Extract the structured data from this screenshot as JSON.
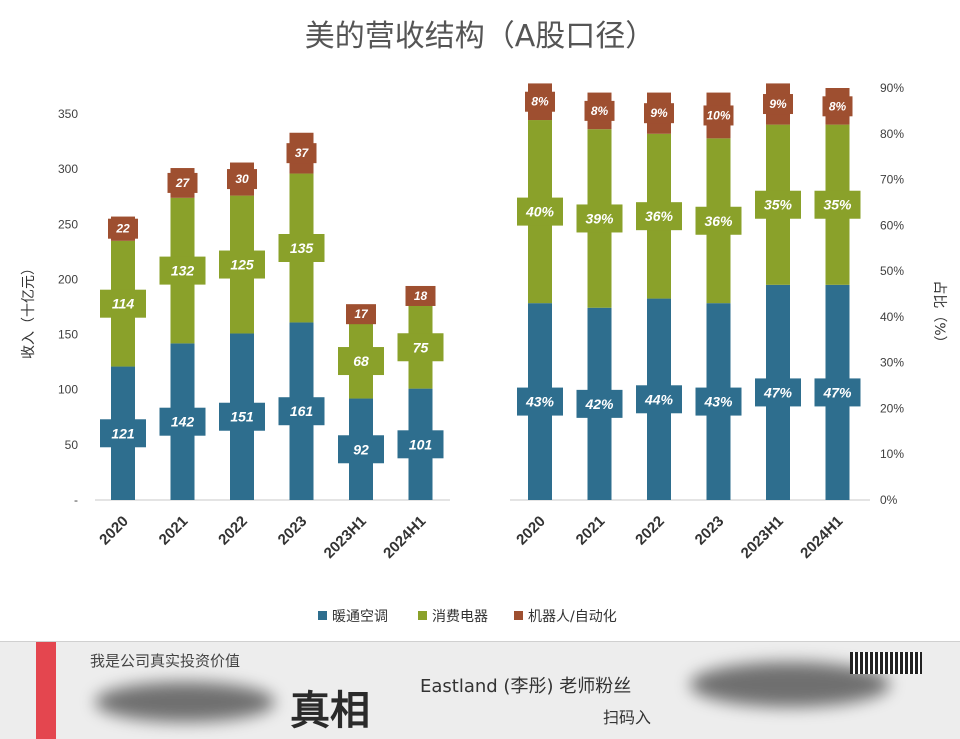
{
  "title": "美的营收结构（A股口径）",
  "colors": {
    "hvac": "#2e6e8e",
    "consumer": "#8aa12a",
    "robot": "#9e4f30"
  },
  "legend": [
    {
      "label": "暖通空调",
      "key": "hvac"
    },
    {
      "label": "消费电器",
      "key": "consumer"
    },
    {
      "label": "机器人/自动化",
      "key": "robot"
    }
  ],
  "chart_data": [
    {
      "type": "bar",
      "stacked": true,
      "ylabel": "收入（十亿元）",
      "ylim": [
        0,
        350
      ],
      "yticks": [
        "-",
        "50",
        "100",
        "150",
        "200",
        "250",
        "300",
        "350"
      ],
      "categories": [
        "2020",
        "2021",
        "2022",
        "2023",
        "2023H1",
        "2024H1"
      ],
      "series": [
        {
          "name": "暖通空调",
          "values": [
            121,
            142,
            151,
            161,
            92,
            101
          ]
        },
        {
          "name": "消费电器",
          "values": [
            114,
            132,
            125,
            135,
            68,
            75
          ]
        },
        {
          "name": "机器人/自动化",
          "values": [
            22,
            27,
            30,
            37,
            17,
            18
          ]
        }
      ],
      "labels": [
        [
          "121",
          "142",
          "151",
          "161",
          "92",
          "101"
        ],
        [
          "114",
          "132",
          "125",
          "135",
          "68",
          "75"
        ],
        [
          "22",
          "27",
          "30",
          "37",
          "17",
          "18"
        ]
      ]
    },
    {
      "type": "bar",
      "stacked": true,
      "ylabel": "占比（%）",
      "ylim": [
        0,
        90
      ],
      "yticks": [
        "0%",
        "10%",
        "20%",
        "30%",
        "40%",
        "50%",
        "60%",
        "70%",
        "80%",
        "90%"
      ],
      "categories": [
        "2020",
        "2021",
        "2022",
        "2023",
        "2023H1",
        "2024H1"
      ],
      "series": [
        {
          "name": "暖通空调",
          "values": [
            43,
            42,
            44,
            43,
            47,
            47
          ]
        },
        {
          "name": "消费电器",
          "values": [
            40,
            39,
            36,
            36,
            35,
            35
          ]
        },
        {
          "name": "机器人/自动化",
          "values": [
            8,
            8,
            9,
            10,
            9,
            8
          ]
        }
      ],
      "labels": [
        [
          "43%",
          "42%",
          "44%",
          "43%",
          "47%",
          "47%"
        ],
        [
          "40%",
          "39%",
          "36%",
          "36%",
          "35%",
          "35%"
        ],
        [
          "8%",
          "8%",
          "9%",
          "10%",
          "9%",
          "8%"
        ]
      ]
    }
  ],
  "banner": {
    "slogan": "我是公司真实投资价值",
    "headline": "真相",
    "host": "Eastland (李彤) 老师粉丝",
    "scan": "扫码入"
  }
}
